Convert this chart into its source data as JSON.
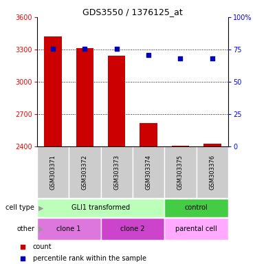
{
  "title": "GDS3550 / 1376125_at",
  "samples": [
    "GSM303371",
    "GSM303372",
    "GSM303373",
    "GSM303374",
    "GSM303375",
    "GSM303376"
  ],
  "counts": [
    3420,
    3315,
    3245,
    2615,
    2410,
    2425
  ],
  "percentiles": [
    75.5,
    75.5,
    75.5,
    70.5,
    68,
    68
  ],
  "ylim_left": [
    2400,
    3600
  ],
  "ylim_right": [
    0,
    100
  ],
  "yticks_left": [
    2400,
    2700,
    3000,
    3300,
    3600
  ],
  "yticks_right": [
    0,
    25,
    50,
    75,
    100
  ],
  "ytick_labels_right": [
    "0",
    "25",
    "50",
    "75",
    "100%"
  ],
  "bar_color": "#cc0000",
  "dot_color": "#0000bb",
  "cell_type_groups": [
    {
      "label": "GLI1 transformed",
      "span": [
        0,
        4
      ],
      "color": "#bbffbb"
    },
    {
      "label": "control",
      "span": [
        4,
        6
      ],
      "color": "#44cc44"
    }
  ],
  "other_groups": [
    {
      "label": "clone 1",
      "span": [
        0,
        2
      ],
      "color": "#dd77dd"
    },
    {
      "label": "clone 2",
      "span": [
        2,
        4
      ],
      "color": "#cc44cc"
    },
    {
      "label": "parental cell",
      "span": [
        4,
        6
      ],
      "color": "#ffaaff"
    }
  ],
  "legend_count_label": "count",
  "legend_pct_label": "percentile rank within the sample",
  "dotted_yticks": [
    2700,
    3000,
    3300
  ],
  "label_area_color": "#cccccc",
  "arrow_color": "#888888"
}
